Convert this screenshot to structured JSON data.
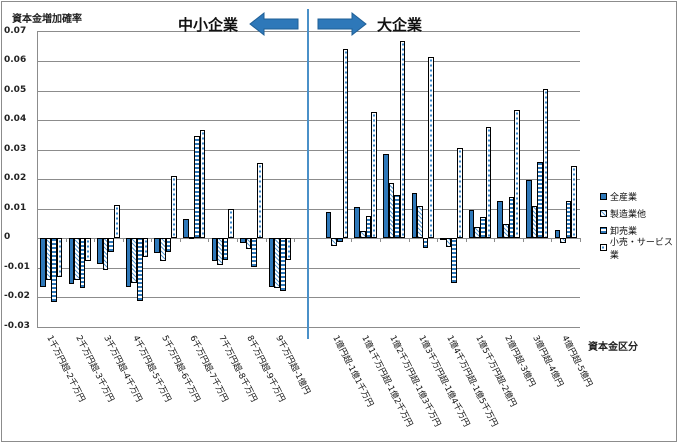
{
  "chart_data": {
    "type": "bar",
    "title": "",
    "ylabel": "資本金増加確率",
    "xlabel": "資本金区分",
    "ylim": [
      -0.03,
      0.07
    ],
    "yticks": [
      "0.07",
      "0.06",
      "0.05",
      "0.04",
      "0.03",
      "0.02",
      "0.01",
      "0",
      "-0.01",
      "-0.02",
      "-0.03"
    ],
    "grid": true,
    "legend_position": "right",
    "annotations": {
      "left_region": "中小企業",
      "right_region": "大企業"
    },
    "categories": [
      "1千万円超-2千万円",
      "2千万円超-3千万円",
      "3千万円超-4千万円",
      "4千万円超-5千万円",
      "5千万円超-6千万円",
      "6千万円超-7千万円",
      "7千万円超-8千万円",
      "8千万円超-9千万円",
      "9千万円超-1億円",
      "1億円超-1億1千万円",
      "1億1千万円超-1億2千万円",
      "1億2千万円超-1億3千万円",
      "1億3千万円超-1億4千万円",
      "1億4千万円超-1億5千万円",
      "1億5千万円超-2億円",
      "2億円超-3億円",
      "3億円超-4億円",
      "4億円超-5億円"
    ],
    "series": [
      {
        "name": "全産業",
        "color": "#2e78b9",
        "values": [
          -0.0166,
          -0.0155,
          -0.0087,
          -0.0166,
          -0.0052,
          0.0064,
          -0.0079,
          -0.0018,
          -0.0167,
          0.0088,
          0.0104,
          0.0285,
          0.0153,
          -0.0005,
          0.0094,
          0.0125,
          0.0195,
          0.0027
        ]
      },
      {
        "name": "製造業他",
        "color": "#5a9ad2",
        "values": [
          -0.0143,
          -0.0143,
          -0.011,
          -0.0153,
          -0.0079,
          0.0005,
          -0.0093,
          -0.0038,
          -0.017,
          -0.0027,
          0.0023,
          0.0185,
          0.011,
          -0.003,
          0.0037,
          0.0047,
          0.011,
          -0.0017
        ]
      },
      {
        "name": "卸売業",
        "color": "#2e78b9",
        "values": [
          -0.0218,
          -0.017,
          -0.0047,
          -0.0215,
          -0.0047,
          0.0346,
          -0.0075,
          -0.0097,
          -0.018,
          -0.0015,
          0.0073,
          0.0146,
          -0.0033,
          -0.0153,
          0.007,
          0.014,
          0.0256,
          0.0125
        ]
      },
      {
        "name": "小売・サービス業",
        "color": "#3a88cc",
        "values": [
          -0.0133,
          -0.0078,
          0.0112,
          -0.0065,
          0.021,
          0.0366,
          0.01,
          0.0253,
          -0.0075,
          0.064,
          0.0427,
          0.0668,
          0.0612,
          0.0305,
          0.0375,
          0.0433,
          0.0504,
          0.0245
        ]
      }
    ]
  },
  "legend": {
    "items": [
      {
        "label": "全産業"
      },
      {
        "label": "製造業他"
      },
      {
        "label": "卸売業"
      },
      {
        "label": "小売・サービス業"
      }
    ]
  },
  "axis": {
    "y_title": "資本金増加確率",
    "x_title": "資本金区分"
  },
  "regions": {
    "left": "中小企業",
    "right": "大企業",
    "arrow_color": "#2e78b9"
  }
}
